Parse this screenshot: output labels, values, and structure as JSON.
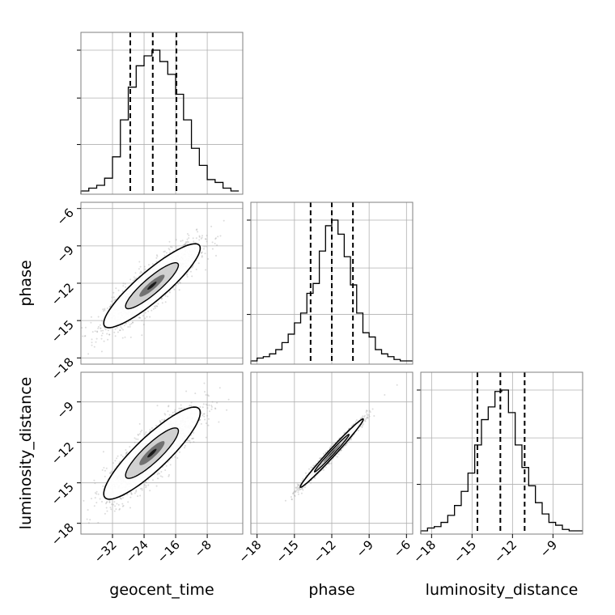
{
  "chart_data": {
    "type": "corner",
    "parameters": [
      "geocent_time",
      "phase",
      "luminosity_distance"
    ],
    "axis_labels": {
      "x": [
        "geocent_time",
        "phase",
        "luminosity_distance"
      ],
      "y": [
        "",
        "phase",
        "luminosity_distance"
      ]
    },
    "ranges": {
      "geocent_time": [
        -40,
        1
      ],
      "phase": [
        -18.5,
        -5.5
      ],
      "luminosity_distance": [
        -18.8,
        -6.8
      ]
    },
    "ticks": {
      "geocent_time": [
        -32,
        -24,
        -16,
        -8
      ],
      "phase": [
        -18,
        -15,
        -12,
        -9,
        -6
      ],
      "luminosity_distance": [
        -18,
        -15,
        -12,
        -9
      ]
    },
    "marginals": [
      {
        "param": "geocent_time",
        "quantiles": [
          -27.5,
          -21.8,
          -15.8
        ],
        "bin_edges": [
          -40,
          -38,
          -36,
          -34,
          -32,
          -30,
          -28,
          -26,
          -24,
          -22,
          -20,
          -18,
          -16,
          -14,
          -12,
          -10,
          -8,
          -6,
          -4,
          -2,
          0
        ],
        "counts": [
          0,
          2,
          4,
          9,
          24,
          50,
          73,
          88,
          95,
          99,
          91,
          82,
          68,
          50,
          30,
          18,
          8,
          6,
          2,
          0
        ]
      },
      {
        "param": "phase",
        "quantiles": [
          -13.7,
          -12.0,
          -10.3
        ],
        "bin_edges": [
          -18.5,
          -18,
          -17.5,
          -17,
          -16.5,
          -16,
          -15.5,
          -15,
          -14.5,
          -14,
          -13.5,
          -13,
          -12.5,
          -12,
          -11.5,
          -11,
          -10.5,
          -10,
          -9.5,
          -9,
          -8.5,
          -8,
          -7.5,
          -7,
          -6.5,
          -6,
          -5.5
        ],
        "counts": [
          0,
          2,
          3,
          5,
          8,
          13,
          19,
          27,
          34,
          48,
          55,
          78,
          96,
          100,
          90,
          74,
          54,
          34,
          20,
          17,
          8,
          5,
          3,
          1,
          0,
          0
        ]
      },
      {
        "param": "luminosity_distance",
        "quantiles": [
          -14.6,
          -12.9,
          -11.1
        ],
        "bin_edges": [
          -18.8,
          -18.3,
          -17.8,
          -17.3,
          -16.8,
          -16.3,
          -15.8,
          -15.3,
          -14.8,
          -14.3,
          -13.8,
          -13.3,
          -12.8,
          -12.3,
          -11.8,
          -11.3,
          -10.8,
          -10.3,
          -9.8,
          -9.3,
          -8.8,
          -8.3,
          -7.8,
          -7.3,
          -6.8
        ],
        "counts": [
          0,
          2,
          3,
          6,
          11,
          18,
          28,
          41,
          61,
          79,
          88,
          99,
          100,
          84,
          61,
          45,
          32,
          20,
          12,
          6,
          4,
          1,
          0,
          0
        ]
      }
    ],
    "pairs": [
      {
        "x": "geocent_time",
        "y": "phase",
        "center": [
          -22,
          -12.2
        ],
        "slope": 0.25,
        "spread_along": 6.0,
        "spread_across": 0.7
      },
      {
        "x": "geocent_time",
        "y": "luminosity_distance",
        "center": [
          -22,
          -12.8
        ],
        "slope": 0.25,
        "spread_along": 6.0,
        "spread_across": 0.75
      },
      {
        "x": "phase",
        "y": "luminosity_distance",
        "center": [
          -12.0,
          -12.8
        ],
        "slope": 1.0,
        "spread_along": 1.7,
        "spread_across": 0.13
      }
    ],
    "grid": true,
    "colors": {
      "contour": "#000000",
      "samples": "#9a9a9a",
      "quantile": "#000000",
      "grid": "#b0b0b0"
    }
  }
}
